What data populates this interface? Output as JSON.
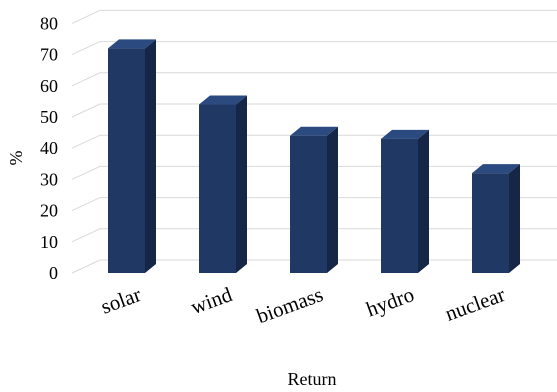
{
  "chart_data": {
    "type": "bar",
    "categories": [
      "solar",
      "wind",
      "biomass",
      "hydro",
      "nuclear"
    ],
    "values": [
      72,
      54,
      44,
      43,
      32
    ],
    "title": "",
    "xlabel": "Return",
    "ylabel": "%",
    "ylim": [
      0,
      80
    ],
    "yticks": [
      0,
      10,
      20,
      30,
      40,
      50,
      60,
      70,
      80
    ],
    "grid": true,
    "style": "3d-column",
    "colors": {
      "front": "#203864",
      "side": "#152647",
      "top": "#2b4a80"
    }
  }
}
